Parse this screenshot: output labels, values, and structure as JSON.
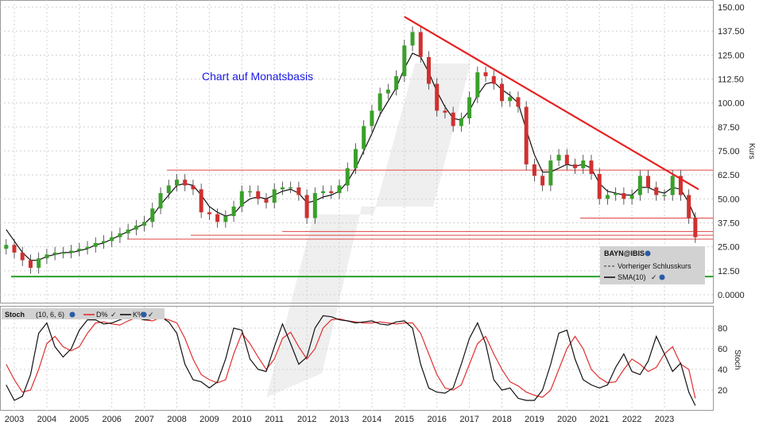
{
  "chart_data": [
    {
      "type": "candlestick",
      "annotation": "Chart auf Monatsbasis",
      "ylabel": "Kurs",
      "ylim": [
        -5,
        152
      ],
      "yticks": [
        "150.00",
        "137.50",
        "125.00",
        "112.50",
        "100.00",
        "87.50",
        "75.00",
        "62.50",
        "50.00",
        "37.50",
        "25.00",
        "12.50",
        "0.0000"
      ],
      "x_years": [
        "2003",
        "2004",
        "2005",
        "2006",
        "2007",
        "2008",
        "2009",
        "2010",
        "2011",
        "2012",
        "2013",
        "2014",
        "2015",
        "2016",
        "2017",
        "2018",
        "2019",
        "2020",
        "2021",
        "2022",
        "2023"
      ],
      "legend": {
        "symbol": "BAYN@IBIS",
        "items": [
          "Vorheriger Schlusskurs",
          "SMA(10)"
        ]
      },
      "series": [
        {
          "name": "BAYN@IBIS",
          "x": [
            2002.75,
            2003.0,
            2003.25,
            2003.5,
            2003.75,
            2004.0,
            2004.25,
            2004.5,
            2004.75,
            2005.0,
            2005.25,
            2005.5,
            2005.75,
            2006.0,
            2006.25,
            2006.5,
            2006.75,
            2007.0,
            2007.25,
            2007.5,
            2007.75,
            2008.0,
            2008.25,
            2008.5,
            2008.75,
            2009.0,
            2009.25,
            2009.5,
            2009.75,
            2010.0,
            2010.25,
            2010.5,
            2010.75,
            2011.0,
            2011.25,
            2011.5,
            2011.75,
            2012.0,
            2012.25,
            2012.5,
            2012.75,
            2013.0,
            2013.25,
            2013.5,
            2013.75,
            2014.0,
            2014.25,
            2014.5,
            2014.75,
            2015.0,
            2015.25,
            2015.5,
            2015.75,
            2016.0,
            2016.25,
            2016.5,
            2016.75,
            2017.0,
            2017.25,
            2017.5,
            2017.75,
            2018.0,
            2018.25,
            2018.5,
            2018.75,
            2019.0,
            2019.25,
            2019.5,
            2019.75,
            2020.0,
            2020.25,
            2020.5,
            2020.75,
            2021.0,
            2021.25,
            2021.5,
            2021.75,
            2022.0,
            2022.25,
            2022.5,
            2022.75,
            2023.0,
            2023.25,
            2023.5,
            2023.75,
            2023.95
          ],
          "close": [
            26,
            22,
            18,
            14,
            19,
            21,
            22,
            22,
            23,
            24,
            25,
            27,
            28,
            30,
            32,
            34,
            36,
            38,
            45,
            53,
            57,
            60,
            57,
            55,
            43,
            42,
            38,
            41,
            46,
            54,
            54,
            50,
            48,
            55,
            56,
            56,
            52,
            40,
            53,
            54,
            53,
            57,
            66,
            76,
            88,
            96,
            105,
            107,
            114,
            130,
            137,
            124,
            110,
            96,
            95,
            88,
            92,
            103,
            116,
            114,
            110,
            101,
            103,
            98,
            68,
            62,
            57,
            70,
            73,
            68,
            66,
            70,
            63,
            50,
            52,
            53,
            50,
            52,
            62,
            56,
            52,
            52,
            62,
            52,
            40,
            30
          ]
        },
        {
          "name": "SMA(10)",
          "x": [
            2002.75,
            2003.0,
            2003.25,
            2003.5,
            2003.75,
            2004.0,
            2004.25,
            2004.5,
            2004.75,
            2005.0,
            2005.25,
            2005.5,
            2005.75,
            2006.0,
            2006.25,
            2006.5,
            2006.75,
            2007.0,
            2007.25,
            2007.5,
            2007.75,
            2008.0,
            2008.25,
            2008.5,
            2008.75,
            2009.0,
            2009.25,
            2009.5,
            2009.75,
            2010.0,
            2010.25,
            2010.5,
            2010.75,
            2011.0,
            2011.25,
            2011.5,
            2011.75,
            2012.0,
            2012.25,
            2012.5,
            2012.75,
            2013.0,
            2013.25,
            2013.5,
            2013.75,
            2014.0,
            2014.25,
            2014.5,
            2014.75,
            2015.0,
            2015.25,
            2015.5,
            2015.75,
            2016.0,
            2016.25,
            2016.5,
            2016.75,
            2017.0,
            2017.25,
            2017.5,
            2017.75,
            2018.0,
            2018.25,
            2018.5,
            2018.75,
            2019.0,
            2019.25,
            2019.5,
            2019.75,
            2020.0,
            2020.25,
            2020.5,
            2020.75,
            2021.0,
            2021.25,
            2021.5,
            2021.75,
            2022.0,
            2022.25,
            2022.5,
            2022.75,
            2023.0,
            2023.25,
            2023.5,
            2023.75,
            2023.95
          ],
          "values": [
            34,
            28,
            22,
            18,
            18,
            20,
            21,
            22,
            22,
            23,
            24,
            26,
            27,
            29,
            31,
            33,
            35,
            37,
            41,
            47,
            52,
            57,
            58,
            57,
            52,
            46,
            43,
            41,
            42,
            47,
            50,
            51,
            50,
            52,
            54,
            55,
            53,
            48,
            49,
            51,
            52,
            54,
            59,
            66,
            75,
            84,
            94,
            101,
            108,
            118,
            126,
            124,
            116,
            106,
            98,
            92,
            91,
            96,
            104,
            110,
            111,
            107,
            104,
            100,
            86,
            73,
            64,
            64,
            66,
            68,
            67,
            68,
            66,
            58,
            54,
            53,
            52,
            52,
            56,
            56,
            54,
            53,
            56,
            55,
            48,
            40
          ]
        }
      ],
      "resistance_line": {
        "x": [
          2015.0,
          2024.05
        ],
        "y": [
          145,
          55
        ]
      },
      "horizontal_levels": [
        65,
        40,
        33,
        31,
        29
      ],
      "support_level": 9.5
    },
    {
      "type": "line",
      "title": "Stoch",
      "params": "(10, 6, 6)",
      "ylabel": "Stoch",
      "ylim": [
        0,
        95
      ],
      "yticks": [
        "80",
        "60",
        "40",
        "20"
      ],
      "series": [
        {
          "name": "D%",
          "color": "#e03030",
          "x": [
            2002.75,
            2003.0,
            2003.25,
            2003.5,
            2003.75,
            2004.0,
            2004.25,
            2004.5,
            2004.75,
            2005.0,
            2005.25,
            2005.5,
            2005.75,
            2006.0,
            2006.25,
            2006.5,
            2006.75,
            2007.0,
            2007.25,
            2007.5,
            2007.75,
            2008.0,
            2008.25,
            2008.5,
            2008.75,
            2009.0,
            2009.25,
            2009.5,
            2009.75,
            2010.0,
            2010.25,
            2010.5,
            2010.75,
            2011.0,
            2011.25,
            2011.5,
            2011.75,
            2012.0,
            2012.25,
            2012.5,
            2012.75,
            2013.0,
            2013.25,
            2013.5,
            2013.75,
            2014.0,
            2014.25,
            2014.5,
            2014.75,
            2015.0,
            2015.25,
            2015.5,
            2015.75,
            2016.0,
            2016.25,
            2016.5,
            2016.75,
            2017.0,
            2017.25,
            2017.5,
            2017.75,
            2018.0,
            2018.25,
            2018.5,
            2018.75,
            2019.0,
            2019.25,
            2019.5,
            2019.75,
            2020.0,
            2020.25,
            2020.5,
            2020.75,
            2021.0,
            2021.25,
            2021.5,
            2021.75,
            2022.0,
            2022.25,
            2022.5,
            2022.75,
            2023.0,
            2023.25,
            2023.5,
            2023.75,
            2023.95
          ],
          "values": [
            45,
            30,
            18,
            20,
            40,
            65,
            72,
            62,
            58,
            62,
            75,
            85,
            86,
            84,
            83,
            87,
            90,
            88,
            87,
            90,
            88,
            85,
            70,
            50,
            35,
            30,
            27,
            30,
            55,
            75,
            65,
            52,
            40,
            50,
            70,
            76,
            62,
            50,
            60,
            80,
            88,
            89,
            87,
            86,
            85,
            85,
            86,
            85,
            84,
            85,
            85,
            75,
            55,
            35,
            22,
            20,
            25,
            45,
            65,
            72,
            55,
            40,
            28,
            24,
            18,
            15,
            13,
            20,
            40,
            60,
            72,
            60,
            40,
            32,
            27,
            28,
            40,
            50,
            45,
            38,
            42,
            55,
            62,
            45,
            40,
            12
          ]
        },
        {
          "name": "K%",
          "color": "#111111",
          "x": [
            2002.75,
            2003.0,
            2003.25,
            2003.5,
            2003.75,
            2004.0,
            2004.25,
            2004.5,
            2004.75,
            2005.0,
            2005.25,
            2005.5,
            2005.75,
            2006.0,
            2006.25,
            2006.5,
            2006.75,
            2007.0,
            2007.25,
            2007.5,
            2007.75,
            2008.0,
            2008.25,
            2008.5,
            2008.75,
            2009.0,
            2009.25,
            2009.5,
            2009.75,
            2010.0,
            2010.25,
            2010.5,
            2010.75,
            2011.0,
            2011.25,
            2011.5,
            2011.75,
            2012.0,
            2012.25,
            2012.5,
            2012.75,
            2013.0,
            2013.25,
            2013.5,
            2013.75,
            2014.0,
            2014.25,
            2014.5,
            2014.75,
            2015.0,
            2015.25,
            2015.5,
            2015.75,
            2016.0,
            2016.25,
            2016.5,
            2016.75,
            2017.0,
            2017.25,
            2017.5,
            2017.75,
            2018.0,
            2018.25,
            2018.5,
            2018.75,
            2019.0,
            2019.25,
            2019.5,
            2019.75,
            2020.0,
            2020.25,
            2020.5,
            2020.75,
            2021.0,
            2021.25,
            2021.5,
            2021.75,
            2022.0,
            2022.25,
            2022.5,
            2022.75,
            2023.0,
            2023.25,
            2023.5,
            2023.75,
            2023.95
          ],
          "values": [
            25,
            10,
            14,
            35,
            75,
            85,
            62,
            52,
            60,
            78,
            88,
            88,
            84,
            85,
            88,
            91,
            90,
            88,
            89,
            91,
            86,
            75,
            45,
            30,
            28,
            22,
            28,
            50,
            80,
            78,
            50,
            40,
            38,
            62,
            84,
            65,
            45,
            52,
            80,
            92,
            91,
            88,
            87,
            85,
            86,
            87,
            84,
            83,
            86,
            87,
            80,
            45,
            22,
            18,
            17,
            22,
            45,
            70,
            85,
            65,
            30,
            20,
            22,
            12,
            10,
            10,
            20,
            45,
            75,
            78,
            50,
            30,
            25,
            22,
            25,
            42,
            55,
            38,
            35,
            48,
            72,
            55,
            38,
            46,
            18,
            5
          ]
        }
      ],
      "legend_items": [
        "D%",
        "K%"
      ]
    }
  ]
}
